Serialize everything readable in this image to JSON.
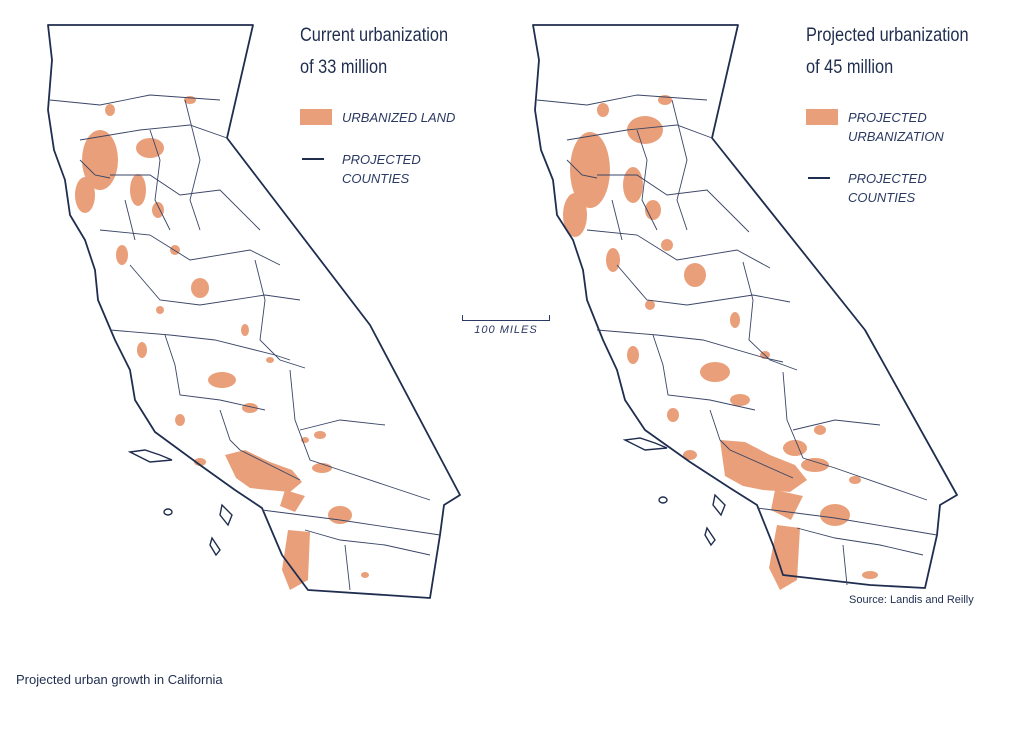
{
  "colors": {
    "urban": "#e9a07a",
    "outline": "#1f2d4f",
    "county_line": "#3a4566"
  },
  "left_map": {
    "title_line1": "Current urbanization",
    "title_line2": "of 33 million",
    "legend": {
      "fill_label": "URBANIZED LAND",
      "line_label_1": "PROJECTED",
      "line_label_2": "COUNTIES"
    }
  },
  "right_map": {
    "title_line1": "Projected urbanization",
    "title_line2": "of 45 million",
    "legend": {
      "fill_label_1": "PROJECTED",
      "fill_label_2": "URBANIZATION",
      "line_label_1": "PROJECTED",
      "line_label_2": "COUNTIES"
    }
  },
  "scale": {
    "label": "100 MILES"
  },
  "source": "Source: Landis and Reilly",
  "caption": "Projected urban growth in California"
}
